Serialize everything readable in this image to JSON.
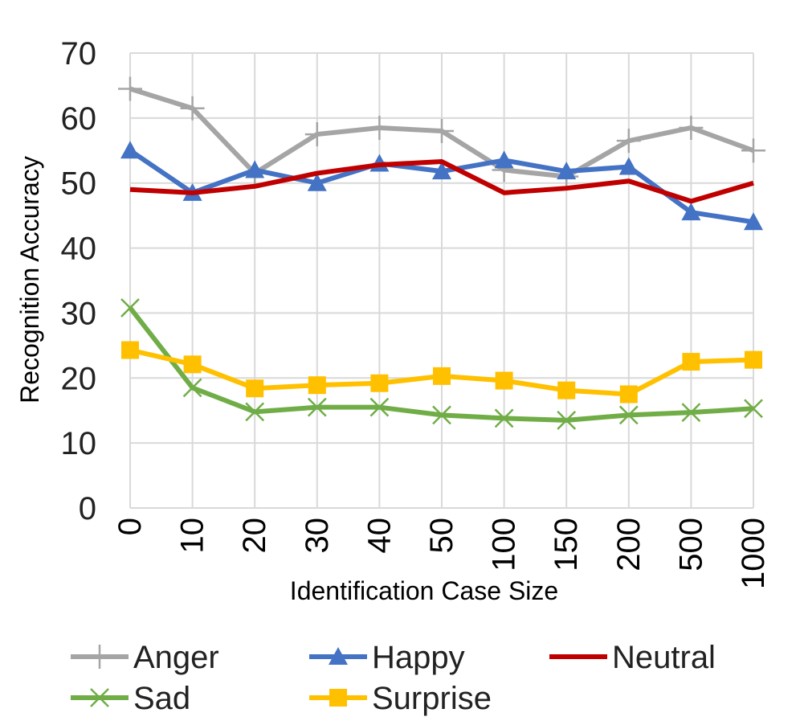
{
  "chart_data": {
    "type": "line",
    "categories": [
      "0",
      "10",
      "20",
      "30",
      "40",
      "50",
      "100",
      "150",
      "200",
      "500",
      "1000"
    ],
    "xlabel": "Identification Case Size",
    "ylabel": "Recognition Accuracy",
    "ylim": [
      0,
      70
    ],
    "yticks": [
      "0",
      "10",
      "20",
      "30",
      "40",
      "50",
      "60",
      "70"
    ],
    "grid": true,
    "legend_position": "bottom",
    "series": [
      {
        "name": "Anger",
        "color": "#a5a5a5",
        "marker": "plus",
        "values": [
          64.5,
          61.5,
          51.5,
          57.5,
          58.5,
          58.0,
          52.0,
          51.0,
          56.5,
          58.5,
          55.0
        ]
      },
      {
        "name": "Happy",
        "color": "#4472c4",
        "marker": "triangle",
        "values": [
          55.0,
          48.5,
          52.0,
          50.0,
          53.0,
          51.8,
          53.5,
          51.8,
          52.5,
          45.5,
          44.0
        ]
      },
      {
        "name": "Neutral",
        "color": "#c00000",
        "marker": "none",
        "values": [
          49.0,
          48.5,
          49.5,
          51.5,
          52.8,
          53.3,
          48.5,
          49.2,
          50.3,
          47.2,
          50.0
        ]
      },
      {
        "name": "Sad",
        "color": "#70ad47",
        "marker": "x",
        "values": [
          30.8,
          18.5,
          14.8,
          15.5,
          15.5,
          14.3,
          13.8,
          13.5,
          14.3,
          14.7,
          15.3
        ]
      },
      {
        "name": "Surprise",
        "color": "#ffc000",
        "marker": "square",
        "values": [
          24.3,
          22.1,
          18.4,
          18.9,
          19.2,
          20.3,
          19.6,
          18.1,
          17.5,
          22.5,
          22.8
        ]
      }
    ]
  }
}
